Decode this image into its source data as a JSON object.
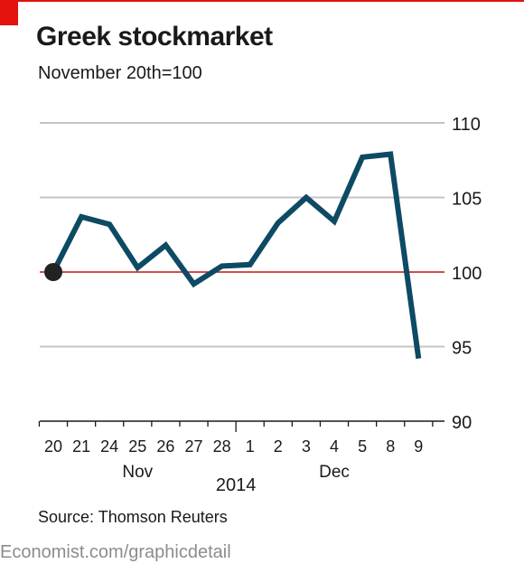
{
  "header": {
    "title": "Greek stockmarket",
    "subtitle": "November 20th=100"
  },
  "source": "Source: Thomson Reuters",
  "footer": "Economist.com/graphicdetail",
  "colors": {
    "accent_red": "#e3120b",
    "series_line": "#0d4a63",
    "gridline": "#c4c4c4",
    "baseline": "#c0140c",
    "marker": "#222222"
  },
  "chart_data": {
    "type": "line",
    "title": "Greek stockmarket",
    "subtitle": "November 20th=100",
    "categories": [
      "20",
      "21",
      "24",
      "25",
      "26",
      "27",
      "28",
      "1",
      "2",
      "3",
      "4",
      "5",
      "8",
      "9"
    ],
    "month_labels": [
      {
        "label": "Nov",
        "from_index": 0,
        "to_index": 6
      },
      {
        "label": "Dec",
        "from_index": 7,
        "to_index": 13
      }
    ],
    "year_label": "2014",
    "series": [
      {
        "values": [
          100,
          103.7,
          103.2,
          100.3,
          101.8,
          99.2,
          100.4,
          100.5,
          103.3,
          105,
          103.4,
          107.7,
          107.9,
          94.2
        ]
      }
    ],
    "ylim": [
      90,
      110
    ],
    "yticks": [
      90,
      95,
      100,
      105,
      110
    ],
    "baseline": 100,
    "grid": true,
    "y_axis_side": "right",
    "start_marker": true
  }
}
